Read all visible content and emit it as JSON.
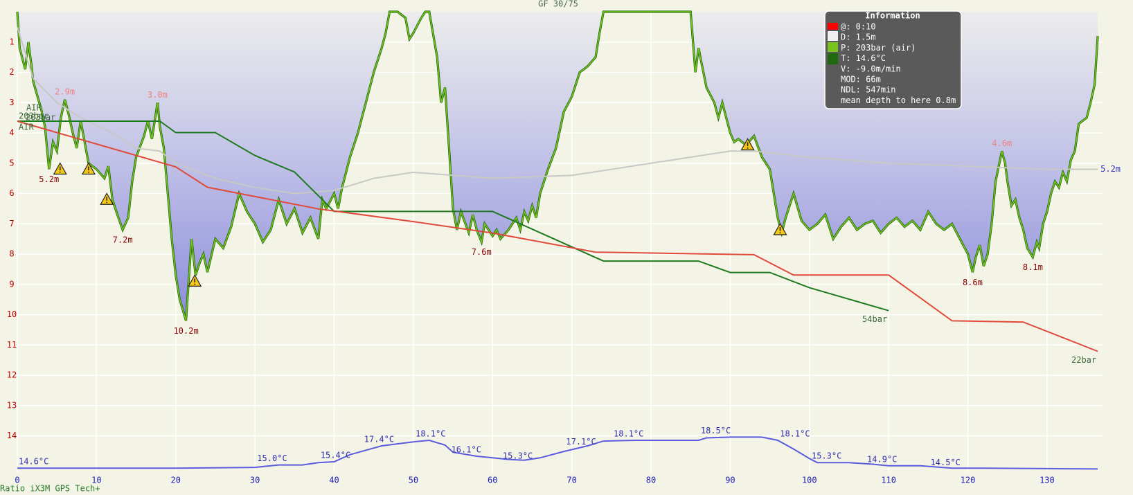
{
  "chart_data": {
    "type": "line",
    "title": "GF 30/75",
    "footer": "Ratio iX3M GPS Tech+",
    "xlim": [
      0,
      137
    ],
    "xticks": [
      0,
      10,
      20,
      30,
      40,
      50,
      60,
      70,
      80,
      90,
      100,
      110,
      120,
      130
    ],
    "ylim": [
      0,
      15.2
    ],
    "y_inverted": true,
    "yticks": [
      1,
      2,
      3,
      4,
      5,
      6,
      7,
      8,
      9,
      10,
      11,
      12,
      13,
      14
    ],
    "y2lim": [
      14.1,
      71.9
    ],
    "y3lim": [
      -73,
      289
    ],
    "grid": true,
    "series": [
      {
        "axis": "y",
        "color": "#7ac21e",
        "fill": true,
        "x": [
          0,
          0.3,
          1,
          1.4,
          1.8,
          2,
          3,
          3.5,
          4,
          4.5,
          5,
          5.5,
          6,
          6.5,
          7,
          7.5,
          8,
          9,
          10,
          11,
          11.5,
          12,
          12.5,
          13.3,
          14,
          14.5,
          15,
          16,
          16.5,
          17,
          17.7,
          18,
          18.5,
          19,
          19.5,
          20,
          20.5,
          21.3,
          21.5,
          22,
          22.5,
          23,
          23.5,
          24,
          25,
          26,
          27,
          28,
          29,
          30,
          31,
          32,
          33,
          34,
          35,
          36,
          37,
          38,
          38.5,
          39,
          40,
          40.5,
          41,
          42,
          43,
          44,
          45,
          46,
          46.5,
          47,
          48,
          49,
          49.5,
          50,
          51,
          51.5,
          52,
          53,
          53.5,
          54,
          54.5,
          55,
          55.5,
          56,
          57,
          57.5,
          58,
          58.6,
          59,
          60,
          60.5,
          61,
          62,
          63,
          63.5,
          64,
          64.5,
          65,
          65.5,
          66,
          67,
          68,
          69,
          70,
          71,
          72,
          73,
          73.5,
          74,
          85,
          85.3,
          85.6,
          86,
          87,
          88,
          88.5,
          89,
          90,
          90.5,
          91,
          92,
          93,
          94,
          95,
          96,
          96.5,
          97,
          98,
          99,
          100,
          101,
          102,
          103,
          104,
          105,
          106,
          107,
          108,
          109,
          110,
          111,
          112,
          113,
          114,
          115,
          116,
          117,
          118,
          119,
          120,
          120.6,
          121,
          121.5,
          122,
          122.5,
          123,
          123.5,
          124.3,
          124.7,
          125,
          125.5,
          126,
          126.5,
          127,
          127.5,
          128.2,
          128.7,
          129,
          129.5,
          130,
          130.5,
          131,
          131.5,
          132,
          132.5,
          133,
          133.5,
          134,
          135,
          135.5,
          136,
          136.4
        ],
        "values": [
          0,
          1.2,
          1.9,
          1.0,
          1.8,
          2.3,
          3.2,
          3.8,
          5.2,
          4.3,
          4.6,
          3.5,
          2.9,
          3.4,
          4.0,
          4.5,
          3.6,
          5.0,
          5.2,
          5.5,
          5.1,
          6.2,
          6.6,
          7.2,
          6.8,
          5.6,
          4.8,
          4.1,
          3.6,
          4.2,
          3.0,
          3.8,
          4.5,
          6.0,
          7.5,
          8.7,
          9.5,
          10.2,
          9.4,
          7.5,
          8.7,
          8.3,
          8.0,
          8.6,
          7.5,
          7.8,
          7.1,
          6.0,
          6.6,
          7.0,
          7.6,
          7.2,
          6.2,
          7.0,
          6.5,
          7.3,
          6.8,
          7.5,
          6.2,
          6.5,
          6.0,
          6.5,
          5.8,
          4.8,
          4.0,
          3.0,
          2.0,
          1.2,
          0.7,
          0,
          0,
          0.2,
          0.9,
          0.7,
          0.2,
          0,
          0,
          1.5,
          3.0,
          2.5,
          4.5,
          6.5,
          7.2,
          6.6,
          7.3,
          6.7,
          7.2,
          7.6,
          7.0,
          7.4,
          7.2,
          7.5,
          7.2,
          6.8,
          7.2,
          6.6,
          6.9,
          6.4,
          6.8,
          6.0,
          5.2,
          4.5,
          3.3,
          2.8,
          2.0,
          1.8,
          1.5,
          0.7,
          0,
          0,
          1.0,
          2.0,
          1.2,
          2.5,
          3.0,
          3.5,
          3.0,
          4.0,
          4.3,
          4.2,
          4.4,
          4.1,
          4.8,
          5.2,
          6.8,
          7.3,
          6.8,
          6.0,
          6.9,
          7.2,
          7.0,
          6.7,
          7.5,
          7.1,
          6.8,
          7.2,
          7.0,
          6.9,
          7.3,
          7.0,
          6.8,
          7.1,
          6.9,
          7.2,
          6.6,
          7.0,
          7.2,
          7.0,
          7.5,
          8.0,
          8.6,
          8.1,
          7.7,
          8.4,
          8.0,
          7.0,
          5.6,
          4.6,
          5.0,
          5.6,
          6.4,
          6.2,
          6.8,
          7.2,
          7.8,
          8.1,
          7.6,
          7.8,
          7.0,
          6.6,
          6.0,
          5.6,
          5.8,
          5.3,
          5.6,
          4.9,
          4.6,
          3.7,
          3.5,
          3.0,
          2.4,
          0.8
        ]
      },
      {
        "axis": "y",
        "color": "#c8c8c4",
        "end_label": "5.2m",
        "label_color": "#3434c4",
        "x": [
          0,
          2,
          5,
          8,
          12,
          15,
          18,
          20,
          25,
          30,
          35,
          40,
          45,
          50,
          60,
          70,
          80,
          85,
          90,
          93,
          100,
          110,
          120,
          130,
          136.4
        ],
        "values": [
          0.5,
          2.2,
          3.0,
          3.5,
          4.0,
          4.5,
          4.6,
          5.0,
          5.5,
          5.8,
          6.0,
          5.9,
          5.5,
          5.3,
          5.5,
          5.4,
          5.0,
          4.8,
          4.6,
          4.6,
          4.8,
          5.0,
          5.1,
          5.2,
          5.2
        ]
      },
      {
        "axis": "y3",
        "color": "#1f7a1f",
        "gas": "AIR",
        "start_label": "203bar",
        "end_label": "54bar",
        "label_color": "#3a6a3a",
        "x": [
          0,
          18,
          20,
          25,
          30,
          35,
          40,
          60,
          74,
          86,
          90,
          95,
          100,
          110
        ],
        "values": [
          203,
          203,
          194,
          194,
          176,
          163,
          132,
          132,
          93,
          93,
          84,
          84,
          72,
          54
        ]
      },
      {
        "axis": "y3",
        "color": "#e04a3a",
        "gas": "AIR",
        "start_label": "203bar",
        "end_label": "22bar",
        "label_color": "#3a6a3a",
        "x": [
          0,
          20,
          24,
          38,
          50,
          60,
          73,
          93,
          98,
          110,
          118,
          127,
          136.4
        ],
        "values": [
          203,
          167,
          151,
          134,
          124,
          115,
          100,
          98,
          82,
          82,
          46,
          45,
          22
        ]
      },
      {
        "axis": "y2",
        "color": "#5b5be0",
        "x": [
          0,
          10,
          20,
          30,
          33,
          36,
          38,
          40,
          42,
          46,
          50,
          52,
          54,
          55,
          58,
          60,
          62,
          64,
          66,
          69,
          72,
          74,
          78,
          86,
          87,
          90,
          94,
          96,
          98,
          100,
          101,
          105,
          108,
          110,
          114,
          118,
          122,
          136.4
        ],
        "values": [
          14.6,
          14.6,
          14.6,
          14.7,
          15.0,
          15.0,
          15.3,
          15.4,
          16.3,
          17.4,
          17.9,
          18.1,
          17.5,
          16.6,
          16.1,
          15.9,
          15.7,
          15.6,
          15.9,
          16.7,
          17.4,
          18.0,
          18.1,
          18.1,
          18.4,
          18.5,
          18.5,
          18.1,
          17.0,
          15.8,
          15.3,
          15.3,
          15.1,
          14.9,
          14.9,
          14.6,
          14.6,
          14.5
        ]
      }
    ],
    "depth_labels": [
      {
        "x": 4.0,
        "value": 5.2,
        "label": "5.2m",
        "color": "#8b0000",
        "side": "below"
      },
      {
        "x": 6.0,
        "value": 2.9,
        "label": "2.9m",
        "color": "#f08080",
        "side": "above"
      },
      {
        "x": 13.3,
        "value": 7.2,
        "label": "7.2m",
        "color": "#8b0000",
        "side": "below"
      },
      {
        "x": 17.7,
        "value": 3.0,
        "label": "3.0m",
        "color": "#f08080",
        "side": "above"
      },
      {
        "x": 21.3,
        "value": 10.2,
        "label": "10.2m",
        "color": "#8b0000",
        "side": "below"
      },
      {
        "x": 58.6,
        "value": 7.6,
        "label": "7.6m",
        "color": "#8b0000",
        "side": "below"
      },
      {
        "x": 120.6,
        "value": 8.6,
        "label": "8.6m",
        "color": "#8b0000",
        "side": "below"
      },
      {
        "x": 124.3,
        "value": 4.6,
        "label": "4.6m",
        "color": "#f08080",
        "side": "above"
      },
      {
        "x": 128.2,
        "value": 8.1,
        "label": "8.1m",
        "color": "#8b0000",
        "side": "below"
      }
    ],
    "temp_labels": [
      {
        "x": 0,
        "value": 14.6,
        "label": "14.6°C"
      },
      {
        "x": 32,
        "value": 15.0,
        "label": "15.0°C"
      },
      {
        "x": 40,
        "value": 15.4,
        "label": "15.4°C"
      },
      {
        "x": 45.5,
        "value": 17.4,
        "label": "17.4°C"
      },
      {
        "x": 52,
        "value": 18.1,
        "label": "18.1°C"
      },
      {
        "x": 56.5,
        "value": 16.1,
        "label": "16.1°C"
      },
      {
        "x": 63,
        "value": 15.3,
        "label": "15.3°C"
      },
      {
        "x": 71,
        "value": 17.1,
        "label": "17.1°C"
      },
      {
        "x": 77,
        "value": 18.1,
        "label": "18.1°C"
      },
      {
        "x": 88,
        "value": 18.5,
        "label": "18.5°C"
      },
      {
        "x": 98,
        "value": 18.1,
        "label": "18.1°C"
      },
      {
        "x": 102,
        "value": 15.3,
        "label": "15.3°C"
      },
      {
        "x": 109,
        "value": 14.9,
        "label": "14.9°C"
      },
      {
        "x": 117,
        "value": 14.5,
        "label": "14.5°C"
      }
    ],
    "warnings": [
      {
        "x": 5.4,
        "y": 5.2
      },
      {
        "x": 9.0,
        "y": 5.2
      },
      {
        "x": 11.3,
        "y": 6.2
      },
      {
        "x": 22.4,
        "y": 8.9
      },
      {
        "x": 92.2,
        "y": 4.4
      },
      {
        "x": 96.3,
        "y": 7.2
      }
    ]
  },
  "info": {
    "title": "Information",
    "lines": [
      "@: 0:10",
      "D: 1.5m",
      "P: 203bar (air)",
      "T: 14.6°C",
      "V: -9.0m/min",
      "MOD: 66m",
      "NDL: 547min",
      "mean depth to here 0.8m"
    ]
  }
}
